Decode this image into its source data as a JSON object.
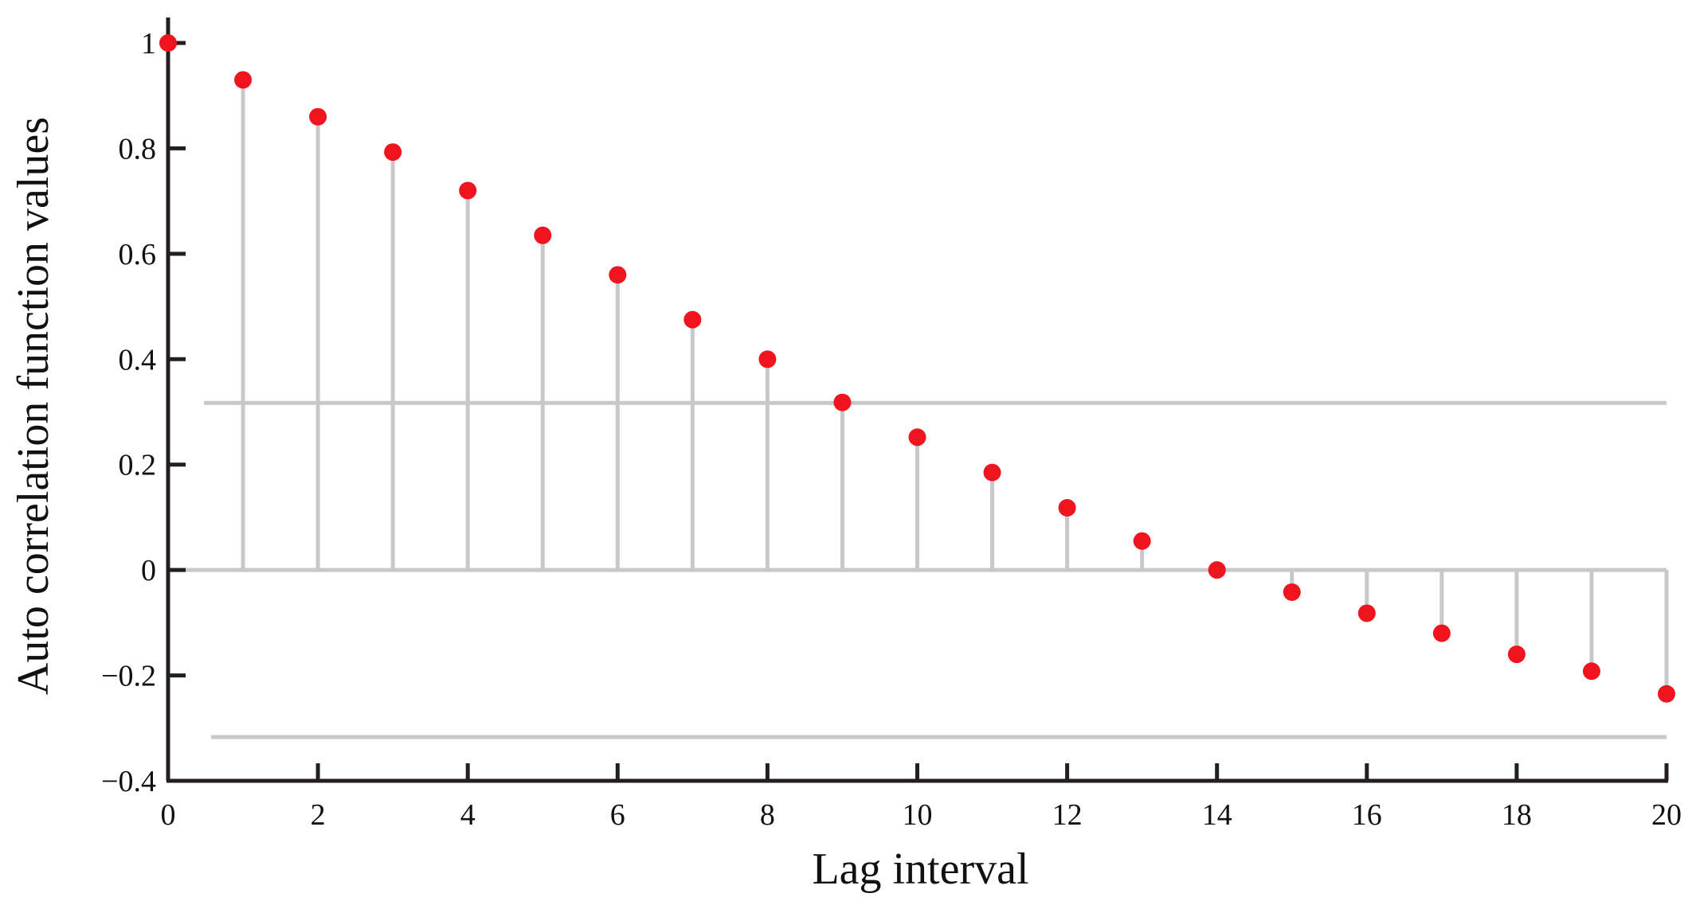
{
  "chart_data": {
    "type": "stem",
    "xlabel": "Lag interval",
    "ylabel": "Auto correlation function values",
    "xlim": [
      0,
      20
    ],
    "ylim": [
      -0.4,
      1.0
    ],
    "x_ticks": [
      "0",
      "2",
      "4",
      "6",
      "8",
      "10",
      "12",
      "14",
      "16",
      "18",
      "20"
    ],
    "y_ticks": [
      "1",
      "0.8",
      "0.6",
      "0.4",
      "0.2",
      "0",
      "−0.2",
      "−0.4"
    ],
    "x": [
      0,
      1,
      2,
      3,
      4,
      5,
      6,
      7,
      8,
      9,
      10,
      11,
      12,
      13,
      14,
      15,
      16,
      17,
      18,
      19,
      20
    ],
    "values": [
      1.0,
      0.93,
      0.86,
      0.793,
      0.72,
      0.635,
      0.56,
      0.475,
      0.4,
      0.318,
      0.252,
      0.185,
      0.118,
      0.055,
      0.0,
      -0.042,
      -0.082,
      -0.12,
      -0.16,
      -0.192,
      -0.235
    ],
    "confidence_bounds": [
      0.317,
      -0.317
    ],
    "grid": false,
    "colors": {
      "marker": "#f0141e",
      "stem": "#c8c8c8",
      "bounds": "#c8c8c8",
      "axis": "#231f20"
    }
  }
}
